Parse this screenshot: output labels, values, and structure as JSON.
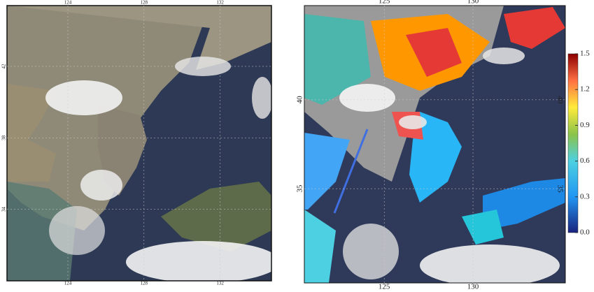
{
  "left_map": {
    "lon_ticks": [
      124,
      128,
      132
    ],
    "lat_ticks": [
      42,
      38,
      34
    ],
    "lon_range": [
      120.8,
      134.7
    ],
    "lat_range": [
      30.0,
      45.4
    ]
  },
  "right_map": {
    "lon_ticks": [
      125,
      130
    ],
    "lat_ticks": [
      40,
      35
    ],
    "lon_range": [
      120.5,
      135.2
    ],
    "lat_range": [
      29.7,
      45.3
    ]
  },
  "colorbar": {
    "range": [
      0,
      1.5
    ],
    "ticks": [
      1.5,
      1.2,
      0.9,
      0.6,
      0.3,
      {
        "value": 0,
        "label": "0.0"
      }
    ]
  }
}
